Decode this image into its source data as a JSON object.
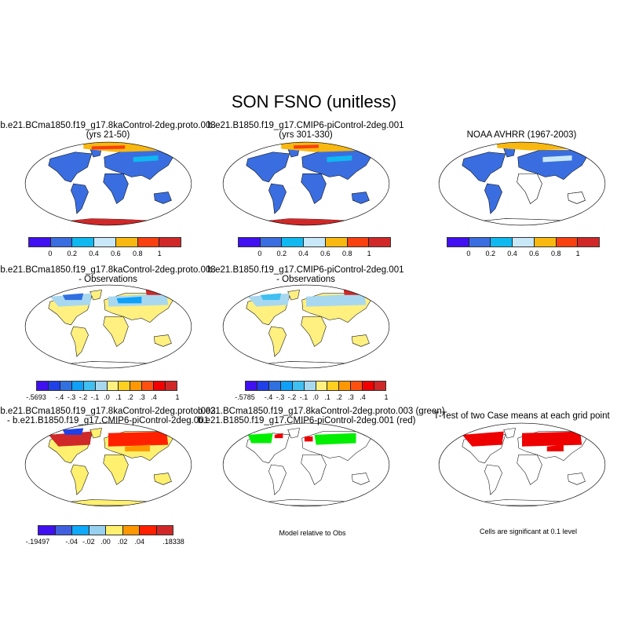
{
  "title": "SON FSNO (unitless)",
  "panels": [
    {
      "title1": "b.e21.BCma1850.f19_g17.8kaControl-2deg.proto.003",
      "title2": "(yrs 21-50)"
    },
    {
      "title1": "b.e21.B1850.f19_g17.CMIP6-piControl-2deg.001",
      "title2": "(yrs 301-330)"
    },
    {
      "title1": "NOAA AVHRR (1967-2003)"
    },
    {
      "title1": "b.e21.BCma1850.f19_g17.8kaControl-2deg.proto.003",
      "title2": "- Observations"
    },
    {
      "title1": "b.e21.B1850.f19_g17.CMIP6-piControl-2deg.001",
      "title2": "- Observations"
    },
    {
      "title1": "b.e21.BCma1850.f19_g17.8kaControl-2deg.proto.003",
      "title2": "- b.e21.B1850.f19_g17.CMIP6-piControl-2deg.001"
    },
    {
      "title1": "b.e21.BCma1850.f19_g17.8kaControl-2deg.proto.003 (green)",
      "title2": "b.e21.B1850.f19_g17.CMIP6-piControl-2deg.001 (red)",
      "note": "Model relative to Obs"
    },
    {
      "title1": "T-Test of two Case means at each grid point",
      "note": "Cells are significant at 0.1 level"
    }
  ],
  "colorbars": [
    {
      "colors": [
        "#4010f0",
        "#3a6ee0",
        "#10b8f0",
        "#c8e8f8",
        "#f8b810",
        "#f84010",
        "#d02828"
      ],
      "labels": [
        "0",
        "0.2",
        "0.4",
        "0.6",
        "0.8",
        "1"
      ],
      "label_edges": [
        1,
        2,
        3,
        4,
        5,
        6
      ]
    },
    {
      "colors": [
        "#4010f0",
        "#3a6ee0",
        "#10b8f0",
        "#c8e8f8",
        "#f8b810",
        "#f84010",
        "#d02828"
      ],
      "labels": [
        "0",
        "0.2",
        "0.4",
        "0.6",
        "0.8",
        "1"
      ],
      "label_edges": [
        1,
        2,
        3,
        4,
        5,
        6
      ]
    },
    {
      "colors": [
        "#4010f0",
        "#3a6ee0",
        "#10b8f0",
        "#c8e8f8",
        "#f8b810",
        "#f84010",
        "#d02828"
      ],
      "labels": [
        "0",
        "0.2",
        "0.4",
        "0.6",
        "0.8",
        "1"
      ],
      "label_edges": [
        1,
        2,
        3,
        4,
        5,
        6
      ]
    },
    {
      "colors": [
        "#4010f0",
        "#2040e8",
        "#3070e0",
        "#10a0f8",
        "#40c0f0",
        "#a8d8f0",
        "#fff080",
        "#ffd020",
        "#ff9800",
        "#ff5010",
        "#f00000",
        "#d02828"
      ],
      "labels": [
        "-.5693",
        "-.4",
        "-.3",
        "-.2",
        "-.1",
        ".0",
        ".1",
        ".2",
        ".3",
        ".4",
        "1"
      ],
      "label_edges": [
        0,
        2,
        3,
        4,
        5,
        6,
        7,
        8,
        9,
        10,
        12
      ]
    },
    {
      "colors": [
        "#4010f0",
        "#2040e8",
        "#3070e0",
        "#10a0f8",
        "#40c0f0",
        "#a8d8f0",
        "#fff080",
        "#ffd020",
        "#ff9800",
        "#ff5010",
        "#f00000",
        "#d02828"
      ],
      "labels": [
        "-.5785",
        "-.4",
        "-.3",
        "-.2",
        "-.1",
        ".0",
        ".1",
        ".2",
        ".3",
        ".4",
        "1"
      ],
      "label_edges": [
        0,
        2,
        3,
        4,
        5,
        6,
        7,
        8,
        9,
        10,
        12
      ]
    },
    {
      "colors": [
        "#4010f0",
        "#4060e0",
        "#10a8f8",
        "#98d0f0",
        "#fff070",
        "#ff9800",
        "#ff2000",
        "#d02828"
      ],
      "labels": [
        "-.19497",
        "-.04",
        "-.02",
        ".00",
        ".02",
        ".04",
        ".18338"
      ],
      "label_edges": [
        0,
        2,
        3,
        4,
        5,
        6,
        8
      ]
    }
  ]
}
